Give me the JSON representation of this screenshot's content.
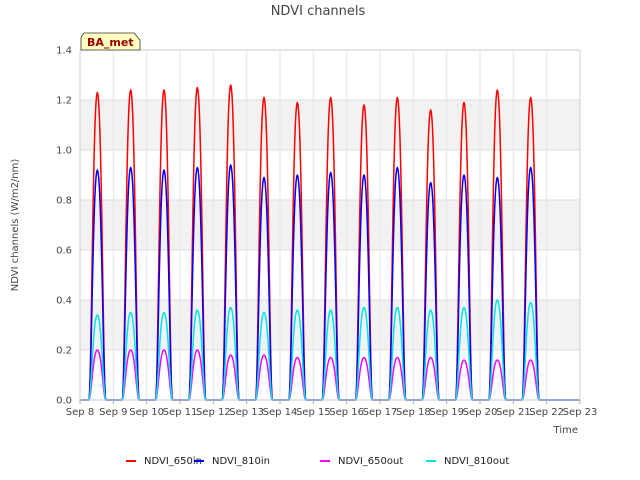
{
  "chart_data": {
    "type": "line",
    "title": "NDVI channels",
    "xlabel": "Time",
    "ylabel": "NDVI channels (W/m2/nm)",
    "ylim": [
      0,
      1.4
    ],
    "yticks": [
      0.0,
      0.2,
      0.4,
      0.6,
      0.8,
      1.0,
      1.2,
      1.4
    ],
    "ytick_labels": [
      "0.0",
      "0.2",
      "0.4",
      "0.6",
      "0.8",
      "1.0",
      "1.2",
      "1.4"
    ],
    "xlim": [
      8,
      23
    ],
    "xticks": [
      8,
      9,
      10,
      11,
      12,
      13,
      14,
      15,
      16,
      17,
      18,
      19,
      20,
      21,
      22,
      23
    ],
    "xtick_labels": [
      "Sep 8",
      "Sep 9",
      "Sep 10",
      "Sep 11",
      "Sep 12",
      "Sep 13",
      "Sep 14",
      "Sep 15",
      "Sep 16",
      "Sep 17",
      "Sep 18",
      "Sep 19",
      "Sep 20",
      "Sep 21",
      "Sep 22",
      "Sep 23"
    ],
    "badge": "BA_met",
    "day_starts": [
      8,
      9,
      10,
      11,
      12,
      13,
      14,
      15,
      16,
      17,
      18,
      19,
      20,
      21,
      22
    ],
    "series": [
      {
        "name": "NDVI_650in",
        "color": "#ff0000",
        "daily_peaks": [
          1.23,
          1.24,
          1.24,
          1.25,
          1.26,
          1.21,
          1.19,
          1.21,
          1.18,
          1.21,
          1.16,
          1.19,
          1.24,
          1.21,
          0.0
        ]
      },
      {
        "name": "NDVI_810in",
        "color": "#0000ff",
        "daily_peaks": [
          0.92,
          0.93,
          0.92,
          0.93,
          0.94,
          0.89,
          0.9,
          0.91,
          0.9,
          0.93,
          0.87,
          0.9,
          0.89,
          0.93,
          0.0
        ]
      },
      {
        "name": "NDVI_650out",
        "color": "#ff00ff",
        "daily_peaks": [
          0.2,
          0.2,
          0.2,
          0.2,
          0.18,
          0.18,
          0.17,
          0.17,
          0.17,
          0.17,
          0.17,
          0.16,
          0.16,
          0.16,
          0.0
        ]
      },
      {
        "name": "NDVI_810out",
        "color": "#00e5e5",
        "daily_peaks": [
          0.34,
          0.35,
          0.35,
          0.36,
          0.37,
          0.35,
          0.36,
          0.36,
          0.37,
          0.37,
          0.36,
          0.37,
          0.4,
          0.39,
          0.0
        ]
      }
    ]
  }
}
